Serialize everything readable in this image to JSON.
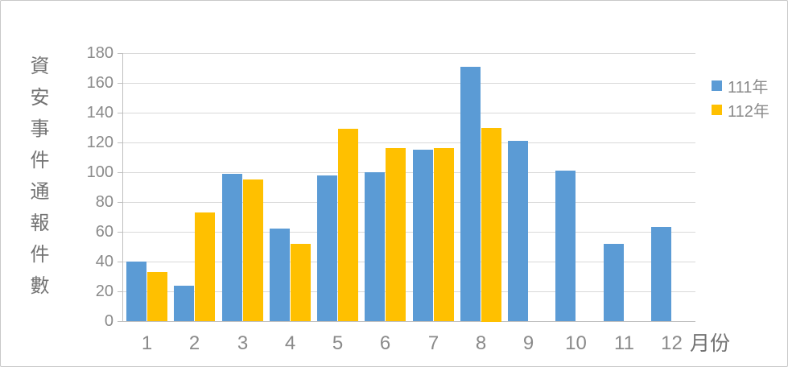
{
  "chart_data": {
    "type": "bar",
    "title": "",
    "ylabel": "資安事件通報件數",
    "xlabel": "月份",
    "categories": [
      "1",
      "2",
      "3",
      "4",
      "5",
      "6",
      "7",
      "8",
      "9",
      "10",
      "11",
      "12"
    ],
    "series": [
      {
        "name": "111年",
        "color": "#5B9BD5",
        "values": [
          40,
          24,
          99,
          62,
          98,
          100,
          115,
          171,
          121,
          101,
          52,
          63
        ]
      },
      {
        "name": "112年",
        "color": "#FFC000",
        "values": [
          33,
          73,
          95,
          52,
          129,
          116,
          116,
          130,
          null,
          null,
          null,
          null
        ]
      }
    ],
    "ylim": [
      0,
      180
    ],
    "ytick_step": 20,
    "yticks": [
      "0",
      "20",
      "40",
      "60",
      "80",
      "100",
      "120",
      "140",
      "160",
      "180"
    ],
    "grid": "horizontal",
    "legend_position": "right",
    "colors": {
      "gridline": "#d9d9d9",
      "axis_line": "#bfbfbf",
      "tick_text": "#8a8a8a",
      "title_text": "#737373",
      "background": "#ffffff",
      "frame_border": "#c8c8c8"
    }
  }
}
